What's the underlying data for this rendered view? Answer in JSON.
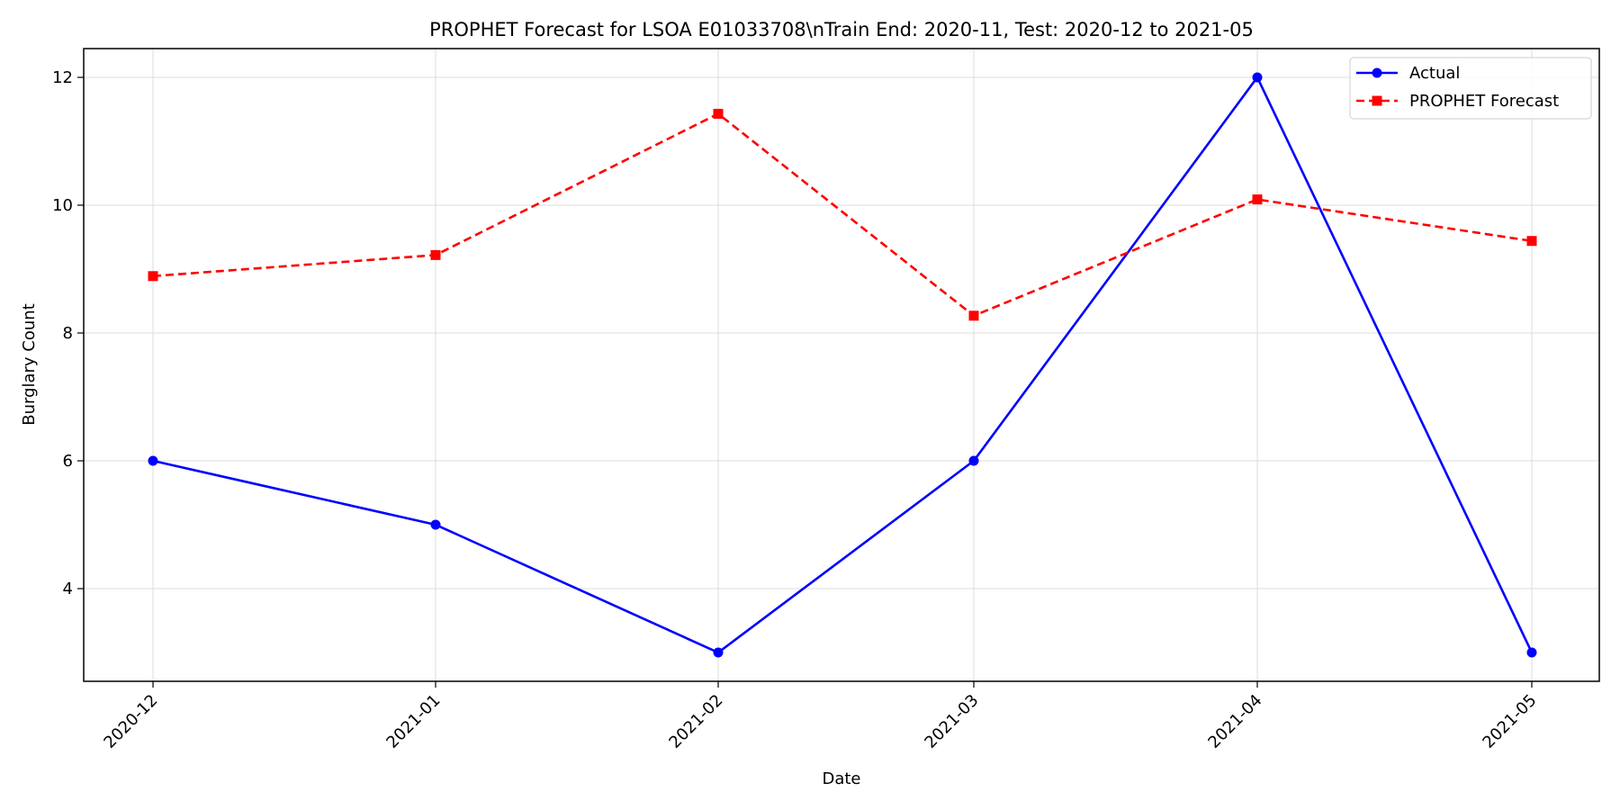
{
  "chart_data": {
    "type": "line",
    "title": "PROPHET Forecast for LSOA E01033708\\nTrain End: 2020-11, Test: 2020-12 to 2021-05",
    "xlabel": "Date",
    "ylabel": "Burglary Count",
    "categories": [
      "2020-12",
      "2021-01",
      "2021-02",
      "2021-03",
      "2021-04",
      "2021-05"
    ],
    "ylim": [
      2.55,
      12.45
    ],
    "yticks": [
      4,
      6,
      8,
      10,
      12
    ],
    "grid": true,
    "legend_position": "top-right",
    "series": [
      {
        "name": "Actual",
        "values": [
          6,
          5,
          3,
          6,
          12,
          3
        ],
        "color": "#0000ff",
        "dash": "solid",
        "marker": "circle"
      },
      {
        "name": "PROPHET Forecast",
        "values": [
          8.89,
          9.22,
          11.43,
          8.27,
          10.09,
          9.44
        ],
        "color": "#ff0000",
        "dash": "dashed",
        "marker": "square"
      }
    ]
  }
}
